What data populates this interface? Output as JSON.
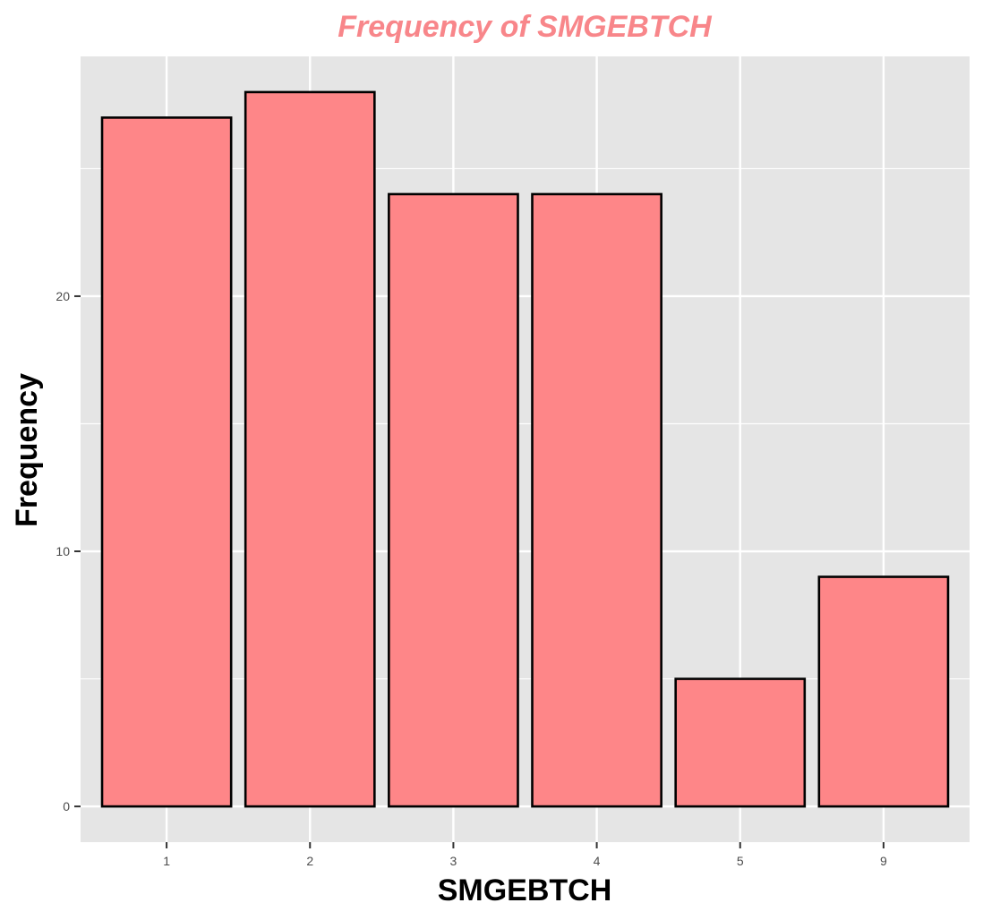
{
  "chart_data": {
    "type": "bar",
    "title": "Frequency of SMGEBTCH",
    "xlabel": "SMGEBTCH",
    "ylabel": "Frequency",
    "categories": [
      "1",
      "2",
      "3",
      "4",
      "5",
      "9"
    ],
    "values": [
      27,
      28,
      24,
      24,
      5,
      9
    ],
    "ylim": [
      -1.4,
      29.4
    ],
    "yticks": [
      0,
      10,
      20
    ],
    "grid": true,
    "legend": "none",
    "colors": {
      "title": "#f8868a",
      "bar_fill": "#fe8688",
      "bar_stroke": "#000000",
      "panel_background": "#e5e5e5",
      "grid": "#ffffff"
    }
  }
}
